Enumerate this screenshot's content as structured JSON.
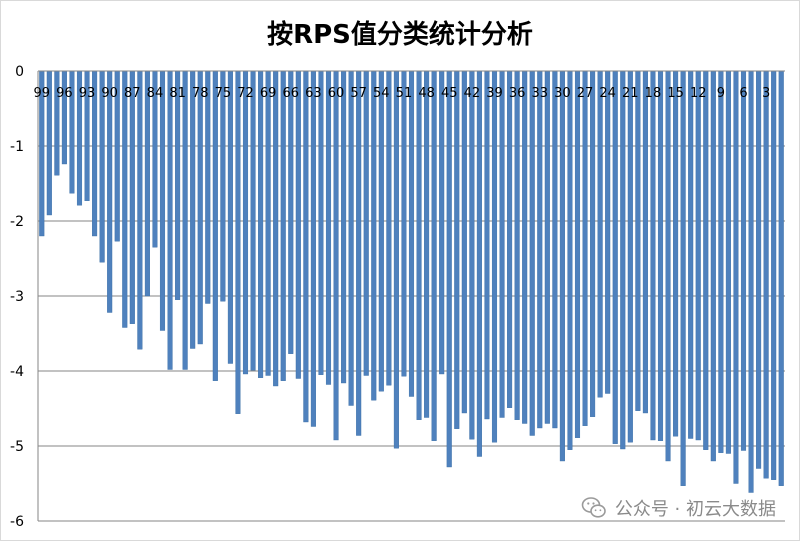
{
  "chart_data": {
    "type": "bar",
    "title": "按RPS值分类统计分析",
    "xlabel": "",
    "ylabel": "",
    "ylim": [
      -6,
      0
    ],
    "yticks": [
      0,
      -1,
      -2,
      -3,
      -4,
      -5,
      -6
    ],
    "grid": true,
    "legend": "none",
    "bar_color": "#4f81bd",
    "x": [
      99,
      98,
      97,
      96,
      95,
      94,
      93,
      92,
      91,
      90,
      89,
      88,
      87,
      86,
      85,
      84,
      83,
      82,
      81,
      80,
      79,
      78,
      77,
      76,
      75,
      74,
      73,
      72,
      71,
      70,
      69,
      68,
      67,
      66,
      65,
      64,
      63,
      62,
      61,
      60,
      59,
      58,
      57,
      56,
      55,
      54,
      53,
      52,
      51,
      50,
      49,
      48,
      47,
      46,
      45,
      44,
      43,
      42,
      41,
      40,
      39,
      38,
      37,
      36,
      35,
      34,
      33,
      32,
      31,
      30,
      29,
      28,
      27,
      26,
      25,
      24,
      23,
      22,
      21,
      20,
      19,
      18,
      17,
      16,
      15,
      14,
      13,
      12,
      11,
      10,
      9,
      8,
      7,
      6,
      5,
      4,
      3,
      2,
      1
    ],
    "x_tick_labels": [
      "99",
      "96",
      "93",
      "90",
      "87",
      "84",
      "81",
      "78",
      "75",
      "72",
      "69",
      "66",
      "63",
      "60",
      "57",
      "54",
      "51",
      "48",
      "45",
      "42",
      "39",
      "36",
      "33",
      "30",
      "27",
      "24",
      "21",
      "18",
      "15",
      "12",
      "9",
      "6",
      "3"
    ],
    "values": [
      -2.2,
      -1.92,
      -1.39,
      -1.24,
      -1.63,
      -1.79,
      -1.73,
      -2.2,
      -2.55,
      -3.22,
      -2.27,
      -3.42,
      -3.37,
      -3.71,
      -3.0,
      -2.35,
      -3.46,
      -3.98,
      -3.05,
      -3.98,
      -3.7,
      -3.64,
      -3.1,
      -4.13,
      -3.07,
      -3.9,
      -4.57,
      -4.04,
      -3.99,
      -4.09,
      -4.06,
      -4.2,
      -4.13,
      -3.77,
      -4.1,
      -4.68,
      -4.74,
      -4.05,
      -4.18,
      -4.92,
      -4.16,
      -4.46,
      -4.86,
      -4.06,
      -4.39,
      -4.27,
      -4.19,
      -5.03,
      -4.07,
      -4.34,
      -4.65,
      -4.62,
      -4.93,
      -4.04,
      -5.28,
      -4.77,
      -4.56,
      -4.91,
      -5.14,
      -4.64,
      -4.95,
      -4.62,
      -4.49,
      -4.65,
      -4.7,
      -4.86,
      -4.76,
      -4.7,
      -4.76,
      -5.2,
      -5.05,
      -4.89,
      -4.73,
      -4.61,
      -4.35,
      -4.3,
      -4.97,
      -5.04,
      -4.95,
      -4.53,
      -4.56,
      -4.92,
      -4.93,
      -5.2,
      -4.87,
      -5.53,
      -4.9,
      -4.92,
      -5.05,
      -5.2,
      -5.09,
      -5.1,
      -5.5,
      -5.06,
      -5.62,
      -5.3,
      -5.43,
      -5.45,
      -5.53
    ]
  },
  "watermark": {
    "text": "公众号 · 初云大数据",
    "icon": "wechat-icon"
  }
}
